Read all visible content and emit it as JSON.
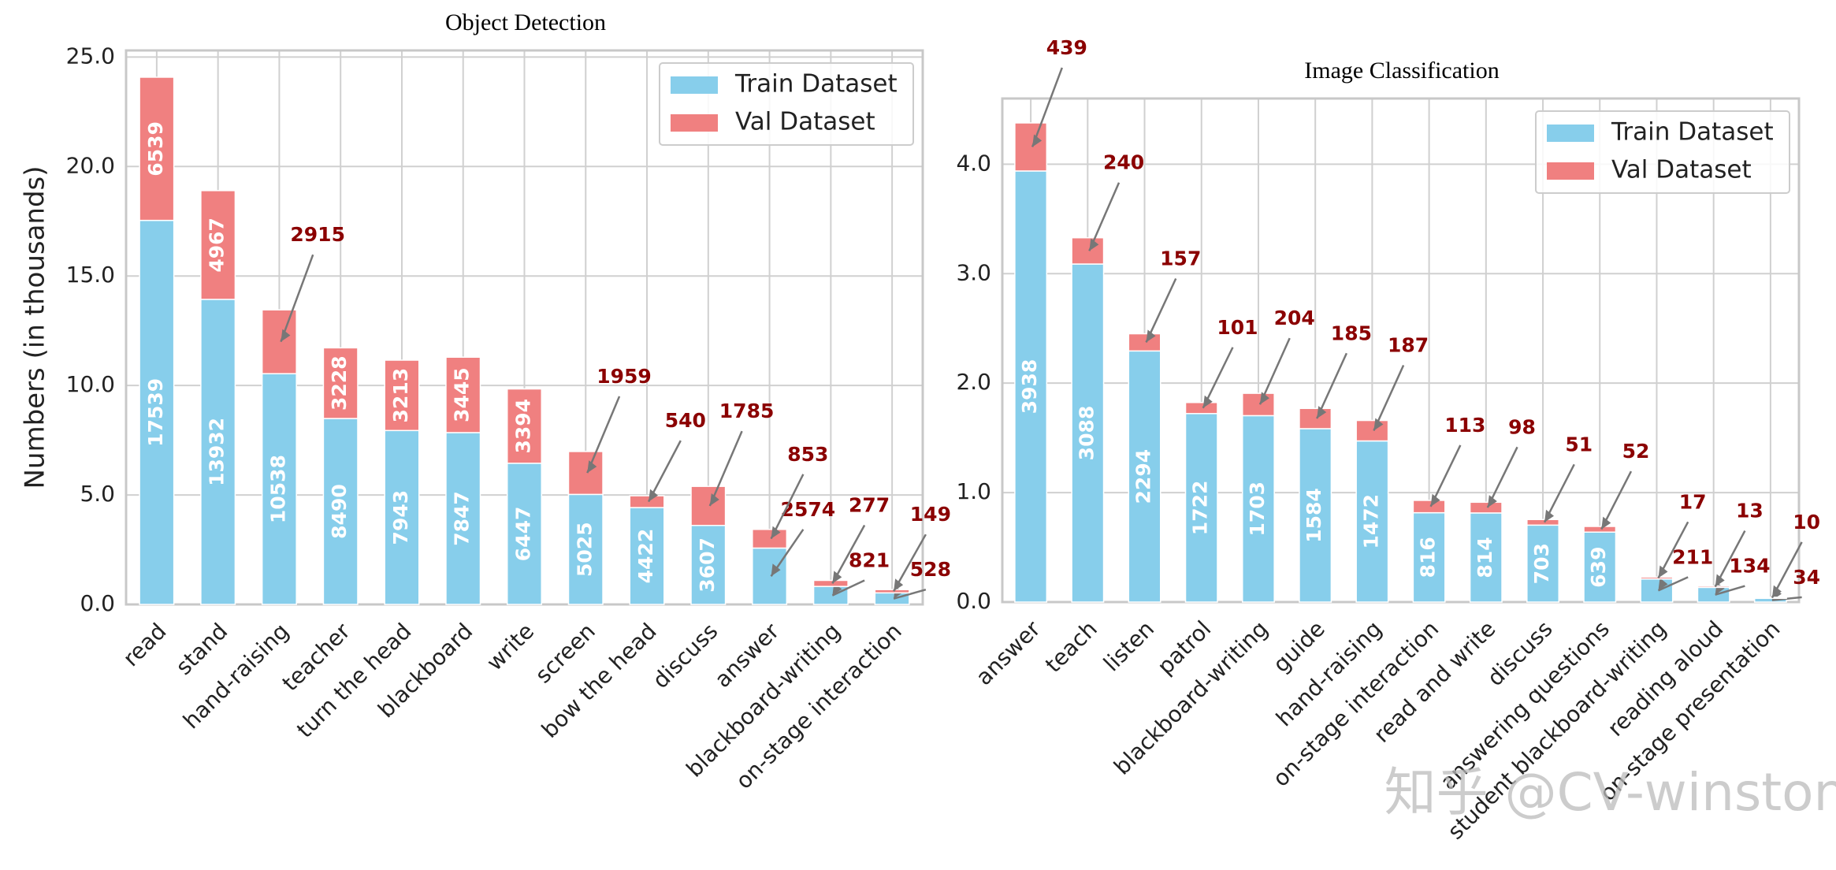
{
  "chart_data": [
    {
      "type": "bar",
      "stacked": true,
      "title": "Object Detection",
      "y_label": "Numbers (in thousands)",
      "categories": [
        "read",
        "stand",
        "hand-raising",
        "teacher",
        "turn the head",
        "blackboard",
        "write",
        "screen",
        "bow the head",
        "discuss",
        "answer",
        "blackboard-writing",
        "on-stage interaction"
      ],
      "series": [
        {
          "name": "Train Dataset",
          "color": "#87ceeb",
          "values": [
            17.539,
            13.932,
            10.538,
            8.49,
            7.943,
            7.847,
            6.447,
            5.025,
            4.422,
            3.607,
            2.574,
            0.821,
            0.528
          ],
          "value_labels": [
            "17539",
            "13932",
            "10538",
            "8490",
            "7943",
            "7847",
            "6447",
            "5025",
            "4422",
            "3607",
            "2574",
            "821",
            "528"
          ]
        },
        {
          "name": "Val Dataset",
          "color": "#f08080",
          "values": [
            6.539,
            4.967,
            2.915,
            3.228,
            3.213,
            3.445,
            3.394,
            1.959,
            0.54,
            1.785,
            0.853,
            0.277,
            0.149
          ],
          "value_labels": [
            "6539",
            "4967",
            "2915",
            "3228",
            "3213",
            "3445",
            "3394",
            "1959",
            "540",
            "1785",
            "853",
            "277",
            "149"
          ]
        }
      ],
      "ylim": [
        0,
        25.3
      ],
      "yticks": [
        {
          "value": 0,
          "label": "0.0"
        },
        {
          "value": 5,
          "label": "5.0"
        },
        {
          "value": 10,
          "label": "10.0"
        },
        {
          "value": 15,
          "label": "15.0"
        },
        {
          "value": 20,
          "label": "20.0"
        },
        {
          "value": 25,
          "label": "25.0"
        }
      ],
      "grid": true,
      "legend": "upper right"
    },
    {
      "type": "bar",
      "stacked": true,
      "title": "Image Classification",
      "categories": [
        "answer",
        "teach",
        "listen",
        "patrol",
        "blackboard-writing",
        "guide",
        "hand-raising",
        "on-stage interaction",
        "read and write",
        "discuss",
        "answering questions",
        "student blackboard-writing",
        "reading aloud",
        "on-stage presentation"
      ],
      "series": [
        {
          "name": "Train Dataset",
          "color": "#87ceeb",
          "values": [
            3.938,
            3.088,
            2.294,
            1.722,
            1.703,
            1.584,
            1.472,
            0.816,
            0.814,
            0.703,
            0.639,
            0.211,
            0.134,
            0.034
          ],
          "value_labels": [
            "3938",
            "3088",
            "2294",
            "1722",
            "1703",
            "1584",
            "1472",
            "816",
            "814",
            "703",
            "639",
            "211",
            "134",
            "34"
          ]
        },
        {
          "name": "Val Dataset",
          "color": "#f08080",
          "values": [
            0.439,
            0.24,
            0.157,
            0.101,
            0.204,
            0.185,
            0.187,
            0.113,
            0.098,
            0.051,
            0.052,
            0.017,
            0.013,
            0.01
          ],
          "value_labels": [
            "439",
            "240",
            "157",
            "101",
            "204",
            "185",
            "187",
            "113",
            "98",
            "51",
            "52",
            "17",
            "13",
            "10"
          ]
        }
      ],
      "ylim": [
        0,
        4.6
      ],
      "yticks": [
        {
          "value": 0,
          "label": "0.0"
        },
        {
          "value": 1,
          "label": "1.0"
        },
        {
          "value": 2,
          "label": "2.0"
        },
        {
          "value": 3,
          "label": "3.0"
        },
        {
          "value": 4,
          "label": "4.0"
        }
      ],
      "grid": true,
      "legend": "upper right"
    }
  ],
  "watermark": "知乎 @CV-winston"
}
